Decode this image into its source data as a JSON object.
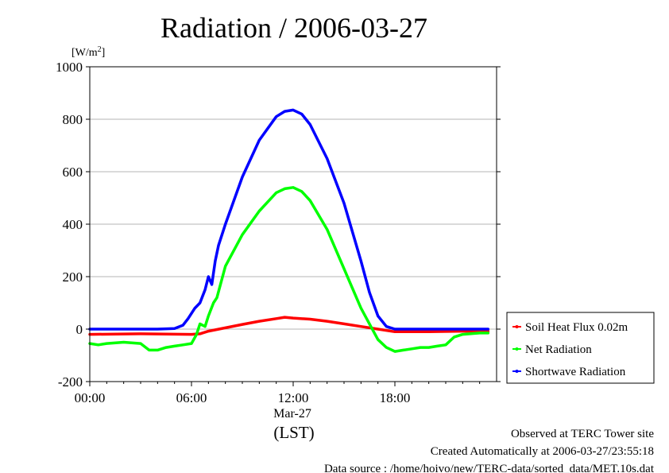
{
  "chart_data": {
    "type": "line",
    "title": "Radiation / 2006-03-27",
    "ylabel_unit": "[W/m",
    "ylabel_sup": "2",
    "ylabel_close": "]",
    "ylim": [
      -200,
      1000
    ],
    "yticks": [
      -200,
      0,
      200,
      400,
      600,
      800,
      1000
    ],
    "ytick_labels": [
      "-200",
      "0",
      "200",
      "400",
      "600",
      "800",
      "1000"
    ],
    "xlim": [
      0,
      24
    ],
    "xticks": [
      0,
      6,
      12,
      18
    ],
    "xtick_labels": [
      "00:00",
      "06:00",
      "12:00",
      "18:00"
    ],
    "date_label": "Mar-27",
    "xlabel": "(LST)",
    "grid": "horizontal",
    "legend_position": "right",
    "series": [
      {
        "name": "Soil Heat Flux 0.02m",
        "color": "#ff0000",
        "x": [
          0,
          3,
          6,
          6.5,
          7,
          8,
          9,
          10,
          11,
          11.5,
          12,
          13,
          14,
          15,
          16,
          17,
          18,
          20,
          22,
          23.5
        ],
        "y": [
          -20,
          -18,
          -20,
          -18,
          -8,
          5,
          18,
          30,
          40,
          45,
          42,
          38,
          30,
          20,
          10,
          0,
          -10,
          -10,
          -8,
          -8
        ]
      },
      {
        "name": "Net Radiation",
        "color": "#00ff00",
        "x": [
          0,
          0.5,
          1,
          2,
          3,
          3.5,
          4,
          4.5,
          5,
          5.5,
          6,
          6.3,
          6.5,
          6.8,
          7,
          7.3,
          7.5,
          8,
          9,
          10,
          11,
          11.5,
          12,
          12.5,
          13,
          14,
          15,
          16,
          16.5,
          17,
          17.5,
          18,
          18.5,
          19,
          19.5,
          20,
          20.5,
          21,
          21.5,
          22,
          23,
          23.5
        ],
        "y": [
          -55,
          -60,
          -55,
          -50,
          -55,
          -80,
          -80,
          -70,
          -65,
          -60,
          -55,
          -20,
          20,
          10,
          50,
          100,
          120,
          240,
          360,
          450,
          520,
          535,
          540,
          525,
          490,
          380,
          230,
          80,
          20,
          -40,
          -70,
          -85,
          -80,
          -75,
          -70,
          -70,
          -65,
          -60,
          -30,
          -20,
          -15,
          -15
        ]
      },
      {
        "name": "Shortwave Radiation",
        "color": "#0000ff",
        "x": [
          0,
          2,
          4,
          5,
          5.5,
          5.8,
          6,
          6.2,
          6.5,
          6.8,
          7,
          7.2,
          7.4,
          7.6,
          8,
          9,
          10,
          11,
          11.5,
          12,
          12.5,
          13,
          14,
          15,
          16,
          16.5,
          17,
          17.5,
          18,
          19,
          20,
          22,
          23.5
        ],
        "y": [
          0,
          0,
          0,
          2,
          15,
          40,
          60,
          80,
          100,
          150,
          200,
          170,
          260,
          320,
          400,
          580,
          720,
          810,
          830,
          835,
          820,
          780,
          650,
          480,
          260,
          140,
          50,
          10,
          0,
          0,
          0,
          0,
          0
        ]
      }
    ]
  },
  "footer": {
    "line1": "Observed at TERC Tower site",
    "line2": "Created Automatically at 2006-03-27/23:55:18",
    "line3": "Data source : /home/hoivo/new/TERC-data/sorted_data/MET.10s.dat"
  }
}
